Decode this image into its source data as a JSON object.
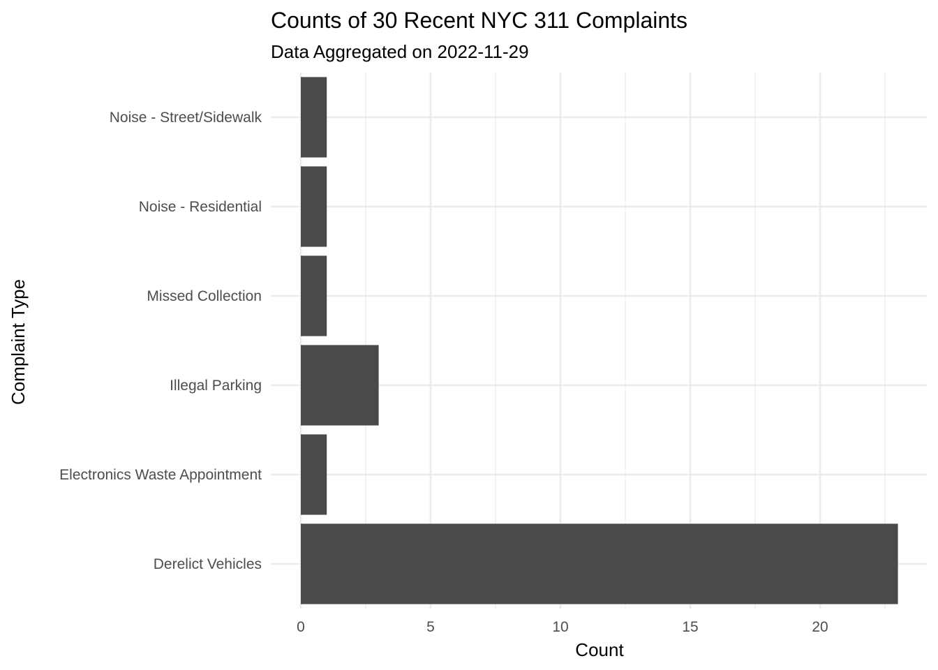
{
  "chart_data": {
    "type": "bar",
    "orientation": "horizontal",
    "title": "Counts of 30 Recent NYC 311 Complaints",
    "subtitle": "Data Aggregated on 2022-11-29",
    "xlabel": "Count",
    "ylabel": "Complaint Type",
    "categories": [
      "Derelict Vehicles",
      "Electronics Waste Appointment",
      "Illegal Parking",
      "Missed Collection",
      "Noise - Residential",
      "Noise - Street/Sidewalk"
    ],
    "values": [
      23,
      1,
      3,
      1,
      1,
      1
    ],
    "xlim": [
      0,
      24
    ],
    "xticks": [
      0,
      5,
      10,
      15,
      20
    ],
    "xtick_labels": [
      "0",
      "5",
      "10",
      "15",
      "20"
    ],
    "grid": true,
    "legend": "none",
    "bar_color": "#4a4a4a"
  }
}
